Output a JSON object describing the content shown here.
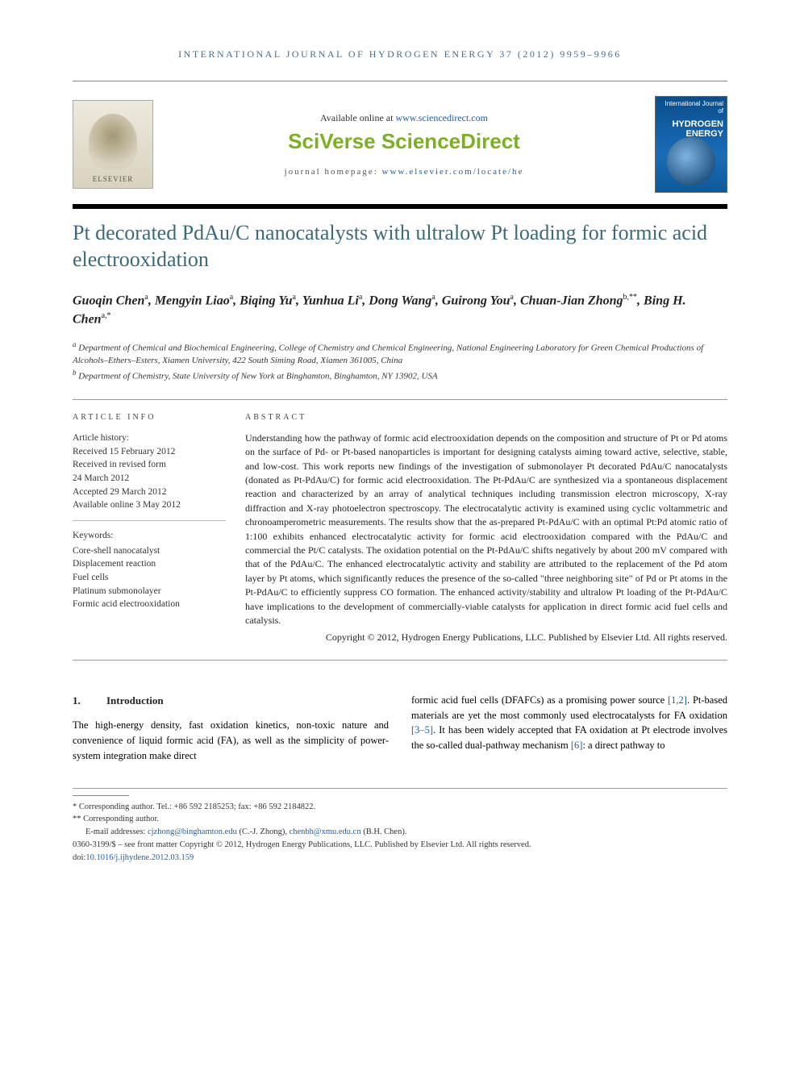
{
  "running_head": "INTERNATIONAL JOURNAL OF HYDROGEN ENERGY 37 (2012) 9959–9966",
  "header": {
    "publisher_name": "ELSEVIER",
    "available_prefix": "Available online at ",
    "available_link_text": "www.sciencedirect.com",
    "platform_brand": "SciVerse ScienceDirect",
    "homepage_prefix": "journal homepage: ",
    "homepage_link_text": "www.elsevier.com/locate/he",
    "cover_small": "International Journal of",
    "cover_title": "HYDROGEN ENERGY"
  },
  "article": {
    "title": "Pt decorated PdAu/C nanocatalysts with ultralow Pt loading for formic acid electrooxidation",
    "authors_html": "Guoqin Chen<sup>a</sup>, Mengyin Liao<sup>a</sup>, Biqing Yu<sup>a</sup>, Yunhua Li<sup>a</sup>, Dong Wang<sup>a</sup>, Guirong You<sup>a</sup>, Chuan-Jian Zhong<sup>b,**</sup>, Bing H. Chen<sup>a,*</sup>",
    "affiliations": {
      "a": "Department of Chemical and Biochemical Engineering, College of Chemistry and Chemical Engineering, National Engineering Laboratory for Green Chemical Productions of Alcohols–Ethers–Esters, Xiamen University, 422 South Siming Road, Xiamen 361005, China",
      "b": "Department of Chemistry, State University of New York at Binghamton, Binghamton, NY 13902, USA"
    }
  },
  "info": {
    "head": "ARTICLE INFO",
    "history_label": "Article history:",
    "history": [
      "Received 15 February 2012",
      "Received in revised form",
      "24 March 2012",
      "Accepted 29 March 2012",
      "Available online 3 May 2012"
    ],
    "keywords_label": "Keywords:",
    "keywords": [
      "Core-shell nanocatalyst",
      "Displacement reaction",
      "Fuel cells",
      "Platinum submonolayer",
      "Formic acid electrooxidation"
    ]
  },
  "abstract": {
    "head": "ABSTRACT",
    "text": "Understanding how the pathway of formic acid electrooxidation depends on the composition and structure of Pt or Pd atoms on the surface of Pd- or Pt-based nanoparticles is important for designing catalysts aiming toward active, selective, stable, and low-cost. This work reports new findings of the investigation of submonolayer Pt decorated PdAu/C nanocatalysts (donated as Pt-PdAu/C) for formic acid electrooxidation. The Pt-PdAu/C are synthesized via a spontaneous displacement reaction and characterized by an array of analytical techniques including transmission electron microscopy, X-ray diffraction and X-ray photoelectron spectroscopy. The electrocatalytic activity is examined using cyclic voltammetric and chronoamperometric measurements. The results show that the as-prepared Pt-PdAu/C with an optimal Pt:Pd atomic ratio of 1:100 exhibits enhanced electrocatalytic activity for formic acid electrooxidation compared with the PdAu/C and commercial the Pt/C catalysts. The oxidation potential on the Pt-PdAu/C shifts negatively by about 200 mV compared with that of the PdAu/C. The enhanced electrocatalytic activity and stability are attributed to the replacement of the Pd atom layer by Pt atoms, which significantly reduces the presence of the so-called \"three neighboring site\" of Pd or Pt atoms in the Pt-PdAu/C to efficiently suppress CO formation. The enhanced activity/stability and ultralow Pt loading of the Pt-PdAu/C have implications to the development of commercially-viable catalysts for application in direct formic acid fuel cells and catalysis.",
    "copyright": "Copyright © 2012, Hydrogen Energy Publications, LLC. Published by Elsevier Ltd. All rights reserved."
  },
  "body": {
    "section_number": "1.",
    "section_title": "Introduction",
    "col1": "The high-energy density, fast oxidation kinetics, non-toxic nature and convenience of liquid formic acid (FA), as well as the simplicity of power-system integration make direct",
    "col2_part1": "formic acid fuel cells (DFAFCs) as a promising power source ",
    "col2_ref1": "[1,2]",
    "col2_part2": ". Pt-based materials are yet the most commonly used electrocatalysts for FA oxidation ",
    "col2_ref2": "[3–5]",
    "col2_part3": ". It has been widely accepted that FA oxidation at Pt electrode involves the so-called dual-pathway mechanism ",
    "col2_ref3": "[6]",
    "col2_part4": ": a direct pathway to"
  },
  "footer": {
    "corr1_label": "* Corresponding author.",
    "corr1_detail": " Tel.: +86 592 2185253; fax: +86 592 2184822.",
    "corr2_label": "** Corresponding author.",
    "emails_label": "E-mail addresses: ",
    "email1": "cjzhong@binghamton.edu",
    "email1_who": " (C.-J. Zhong), ",
    "email2": "chenbh@xmu.edu.cn",
    "email2_who": " (B.H. Chen).",
    "issn_line": "0360-3199/$ – see front matter Copyright © 2012, Hydrogen Energy Publications, LLC. Published by Elsevier Ltd. All rights reserved.",
    "doi_prefix": "doi:",
    "doi": "10.1016/j.ijhydene.2012.03.159"
  },
  "colors": {
    "link": "#1b5fab",
    "title": "#3a6a7a",
    "scidirect": "#6ea11e",
    "running_head": "#4a6c8c"
  },
  "typography": {
    "title_fontsize": 26,
    "body_fontsize": 12.5,
    "abstract_fontsize": 12,
    "info_fontsize": 11.5,
    "footer_fontsize": 10.5
  }
}
